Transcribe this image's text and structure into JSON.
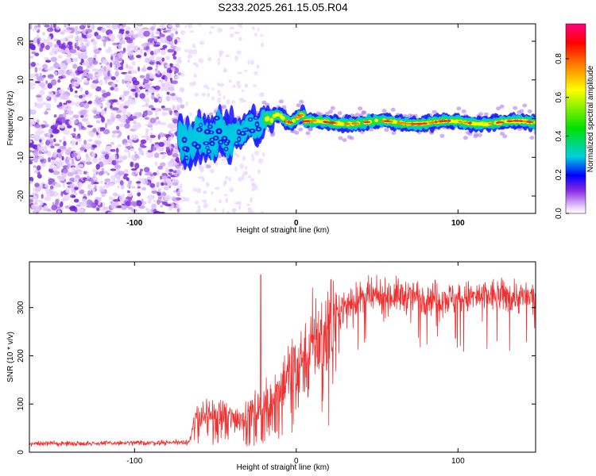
{
  "chart_data": [
    {
      "type": "heatmap",
      "title": "S233.2025.261.15.05.R04",
      "xlabel": "Height of straight line (km)",
      "ylabel": "Frequency (Hz)",
      "xlim": [
        -165,
        148
      ],
      "ylim": [
        -24.5,
        24.5
      ],
      "xticks": [
        -100,
        0,
        100
      ],
      "yticks": [
        -20,
        -10,
        0,
        10,
        20
      ],
      "colorbar": {
        "label": "Normalized spectral amplitude",
        "range": [
          0,
          1
        ],
        "ticks": [
          "0.0",
          "0.2",
          "0.4",
          "0.6",
          "0.8"
        ]
      },
      "features": {
        "noise_region_x": [
          -165,
          -72
        ],
        "onset_x": -72,
        "signal_center_frequency_hz": -1,
        "colormap": [
          "#ffffff",
          "#ead6ff",
          "#8a2be2",
          "#0000ff",
          "#00d0e0",
          "#00e000",
          "#ffff00",
          "#ff8000",
          "#ff0000",
          "#ff0080"
        ]
      }
    },
    {
      "type": "line",
      "xlabel": "Height of straight line (km)",
      "ylabel": "SNR (10 * v/v)",
      "xlim": [
        -165,
        148
      ],
      "ylim": [
        0,
        395
      ],
      "xticks": [
        -100,
        0,
        100
      ],
      "yticks": [
        0,
        100,
        200,
        300
      ],
      "series": [
        {
          "name": "SNR",
          "color": "#f03030",
          "x": [
            -165,
            -140,
            -100,
            -80,
            -66,
            -62,
            -55,
            -45,
            -35,
            -25,
            -20,
            -15,
            -8,
            0,
            10,
            20,
            28,
            35,
            45,
            60,
            80,
            100,
            120,
            148
          ],
          "y": [
            18,
            18,
            19,
            20,
            22,
            70,
            80,
            75,
            70,
            90,
            95,
            110,
            150,
            180,
            220,
            265,
            300,
            315,
            320,
            325,
            322,
            318,
            325,
            320
          ]
        }
      ],
      "spikes": [
        {
          "x": -22,
          "y": 368
        }
      ]
    }
  ]
}
